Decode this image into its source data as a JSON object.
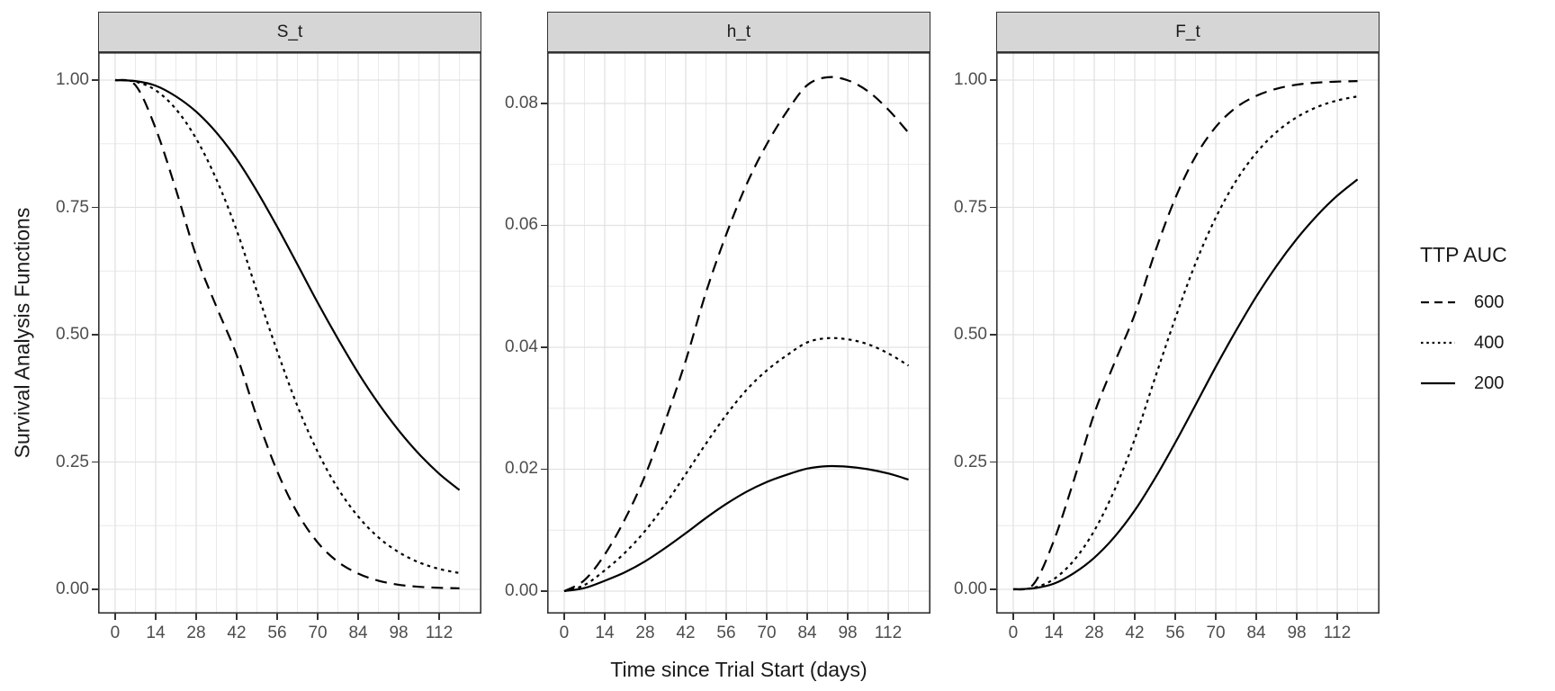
{
  "figure": {
    "background": "#ffffff",
    "strip_bg": "#d6d6d6",
    "panel_border": "#333333",
    "grid_major": "#e2e2e2",
    "grid_minor": "#e8e8e8",
    "axis_text_color": "#4d4d4d",
    "text_color": "#1a1a1a",
    "line_color": "#000000"
  },
  "axes": {
    "x_title": "Time since Trial Start (days)",
    "y_title": "Survival Analysis Functions"
  },
  "legend": {
    "title": "TTP AUC",
    "entries": [
      {
        "label": "600",
        "linetype": "dashed"
      },
      {
        "label": "400",
        "linetype": "dotted"
      },
      {
        "label": "200",
        "linetype": "solid"
      }
    ]
  },
  "x_axis": {
    "values": [
      0,
      7,
      14,
      21,
      28,
      35,
      42,
      49,
      56,
      63,
      70,
      77,
      84,
      91,
      98,
      105,
      112,
      119
    ],
    "major_ticks": [
      {
        "t": 0,
        "label": "0"
      },
      {
        "t": 14,
        "label": "14"
      },
      {
        "t": 28,
        "label": "28"
      },
      {
        "t": 42,
        "label": "42"
      },
      {
        "t": 56,
        "label": "56"
      },
      {
        "t": 70,
        "label": "70"
      },
      {
        "t": 84,
        "label": "84"
      },
      {
        "t": 98,
        "label": "98"
      },
      {
        "t": 112,
        "label": "112"
      }
    ],
    "minor_ticks": [
      -7,
      7,
      21,
      35,
      49,
      63,
      77,
      91,
      105,
      119
    ],
    "xlim": [
      -5.9,
      126.6
    ]
  },
  "chart_data": [
    {
      "type": "line",
      "title": "S_t",
      "ylim": [
        -0.0477,
        1.0548
      ],
      "yticks": [
        {
          "v": 0.0,
          "label": "0.00"
        },
        {
          "v": 0.25,
          "label": "0.25"
        },
        {
          "v": 0.5,
          "label": "0.50"
        },
        {
          "v": 0.75,
          "label": "0.75"
        },
        {
          "v": 1.0,
          "label": "1.00"
        }
      ],
      "yminor": [
        0.125,
        0.375,
        0.625,
        0.875
      ],
      "series": [
        {
          "name": "600",
          "linetype": "dashed",
          "values": [
            1.0,
            0.99,
            0.905,
            0.785,
            0.655,
            0.555,
            0.46,
            0.338,
            0.232,
            0.15,
            0.092,
            0.054,
            0.031,
            0.017,
            0.009,
            0.005,
            0.003,
            0.002
          ]
        },
        {
          "name": "400",
          "linetype": "dotted",
          "values": [
            1.0,
            0.997,
            0.98,
            0.943,
            0.885,
            0.805,
            0.705,
            0.585,
            0.468,
            0.36,
            0.27,
            0.198,
            0.143,
            0.102,
            0.073,
            0.053,
            0.04,
            0.032
          ]
        },
        {
          "name": "200",
          "linetype": "solid",
          "values": [
            1.0,
            0.998,
            0.989,
            0.968,
            0.938,
            0.897,
            0.845,
            0.782,
            0.712,
            0.638,
            0.563,
            0.492,
            0.425,
            0.365,
            0.312,
            0.266,
            0.227,
            0.195
          ]
        }
      ]
    },
    {
      "type": "line",
      "title": "h_t",
      "ylim": [
        -0.00369,
        0.08841
      ],
      "yticks": [
        {
          "v": 0.0,
          "label": "0.00"
        },
        {
          "v": 0.02,
          "label": "0.02"
        },
        {
          "v": 0.04,
          "label": "0.04"
        },
        {
          "v": 0.06,
          "label": "0.06"
        },
        {
          "v": 0.08,
          "label": "0.08"
        }
      ],
      "yminor": [
        0.01,
        0.03,
        0.05,
        0.07
      ],
      "series": [
        {
          "name": "600",
          "linetype": "dashed",
          "values": [
            0,
            0.0018,
            0.006,
            0.0118,
            0.019,
            0.028,
            0.0378,
            0.049,
            0.0585,
            0.0667,
            0.0733,
            0.0787,
            0.083,
            0.0843,
            0.0838,
            0.082,
            0.079,
            0.0752
          ]
        },
        {
          "name": "400",
          "linetype": "dotted",
          "values": [
            0,
            0.001,
            0.0034,
            0.0063,
            0.0099,
            0.0143,
            0.0192,
            0.0242,
            0.0289,
            0.033,
            0.0362,
            0.0387,
            0.0408,
            0.0415,
            0.0413,
            0.0405,
            0.039,
            0.037
          ]
        },
        {
          "name": "200",
          "linetype": "solid",
          "values": [
            0,
            0.0005,
            0.0017,
            0.0031,
            0.0049,
            0.0071,
            0.0095,
            0.012,
            0.0143,
            0.0163,
            0.0179,
            0.0191,
            0.0201,
            0.0205,
            0.0204,
            0.02,
            0.0193,
            0.0183
          ]
        }
      ]
    },
    {
      "type": "line",
      "title": "F_t",
      "ylim": [
        -0.0477,
        1.0548
      ],
      "yticks": [
        {
          "v": 0.0,
          "label": "0.00"
        },
        {
          "v": 0.25,
          "label": "0.25"
        },
        {
          "v": 0.5,
          "label": "0.50"
        },
        {
          "v": 0.75,
          "label": "0.75"
        },
        {
          "v": 1.0,
          "label": "1.00"
        }
      ],
      "yminor": [
        0.125,
        0.375,
        0.625,
        0.875
      ],
      "series": [
        {
          "name": "600",
          "linetype": "dashed",
          "values": [
            0,
            0.01,
            0.095,
            0.215,
            0.345,
            0.445,
            0.54,
            0.662,
            0.768,
            0.85,
            0.908,
            0.946,
            0.969,
            0.983,
            0.991,
            0.995,
            0.997,
            0.998
          ]
        },
        {
          "name": "400",
          "linetype": "dotted",
          "values": [
            0,
            0.003,
            0.02,
            0.057,
            0.115,
            0.195,
            0.295,
            0.415,
            0.532,
            0.64,
            0.73,
            0.802,
            0.857,
            0.898,
            0.927,
            0.947,
            0.96,
            0.968
          ]
        },
        {
          "name": "200",
          "linetype": "solid",
          "values": [
            0,
            0.002,
            0.011,
            0.032,
            0.062,
            0.103,
            0.155,
            0.218,
            0.288,
            0.362,
            0.437,
            0.508,
            0.575,
            0.635,
            0.688,
            0.734,
            0.773,
            0.805
          ]
        }
      ]
    }
  ]
}
